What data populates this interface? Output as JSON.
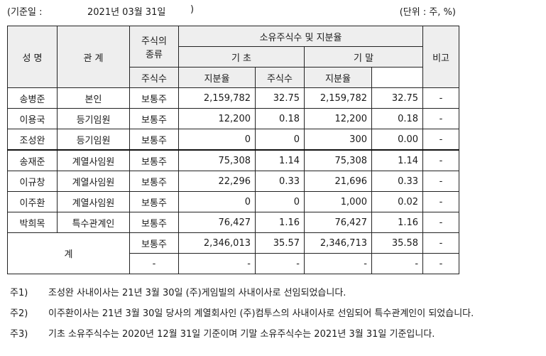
{
  "header": {
    "date_label": "(기준일 :",
    "date_value": "2021년 03월 31일",
    "date_close": ")",
    "unit": "(단위 : 주, %)"
  },
  "table": {
    "headers": {
      "name": "성 명",
      "relation": "관 계",
      "stock_type": "주식의\n종류",
      "holdings_group": "소유주식수 및 지분율",
      "begin": "기 초",
      "end": "기 말",
      "shares": "주식수",
      "ratio": "지분율",
      "remark": "비고"
    },
    "rows": [
      {
        "name": "송병준",
        "relation": "본인",
        "type": "보통주",
        "begin_shares": "2,159,782",
        "begin_ratio": "32.75",
        "end_shares": "2,159,782",
        "end_ratio": "32.75",
        "remark": "-"
      },
      {
        "name": "이용국",
        "relation": "등기임원",
        "type": "보통주",
        "begin_shares": "12,200",
        "begin_ratio": "0.18",
        "end_shares": "12,200",
        "end_ratio": "0.18",
        "remark": "-"
      },
      {
        "name": "조성완",
        "relation": "등기임원",
        "type": "보통주",
        "begin_shares": "0",
        "begin_ratio": "0",
        "end_shares": "300",
        "end_ratio": "0.00",
        "remark": "-"
      },
      {
        "name": "송재준",
        "relation": "계열사임원",
        "type": "보통주",
        "begin_shares": "75,308",
        "begin_ratio": "1.14",
        "end_shares": "75,308",
        "end_ratio": "1.14",
        "remark": "-"
      },
      {
        "name": "이규창",
        "relation": "계열사임원",
        "type": "보통주",
        "begin_shares": "22,296",
        "begin_ratio": "0.33",
        "end_shares": "21,696",
        "end_ratio": "0.33",
        "remark": "-"
      },
      {
        "name": "이주환",
        "relation": "계열사임원",
        "type": "보통주",
        "begin_shares": "0",
        "begin_ratio": "0",
        "end_shares": "1,000",
        "end_ratio": "0.02",
        "remark": "-"
      },
      {
        "name": "박희목",
        "relation": "특수관계인",
        "type": "보통주",
        "begin_shares": "76,427",
        "begin_ratio": "1.16",
        "end_shares": "76,427",
        "end_ratio": "1.16",
        "remark": "-"
      }
    ],
    "total": {
      "label": "계",
      "rows": [
        {
          "type": "보통주",
          "begin_shares": "2,346,013",
          "begin_ratio": "35.57",
          "end_shares": "2,346,713",
          "end_ratio": "35.58",
          "remark": "-"
        },
        {
          "type": "-",
          "begin_shares": "-",
          "begin_ratio": "-",
          "end_shares": "-",
          "end_ratio": "-",
          "remark": "-"
        }
      ]
    }
  },
  "notes": [
    {
      "tag": "주1)",
      "text": "조성완 사내이사는 21년 3월 30일 (주)게임빌의 사내이사로 선임되었습니다."
    },
    {
      "tag": "주2)",
      "text": "이주환이사는 21년 3월 30일 당사의 계열회사인 (주)컴투스의 사내이사로 선임되어 특수관계인이 되었습니다."
    },
    {
      "tag": "주3)",
      "text": "기초 소유주식수는 2020년 12월 31일 기준이며 기말 소유주식수는 2021년 3월 31일 기준입니다."
    }
  ]
}
